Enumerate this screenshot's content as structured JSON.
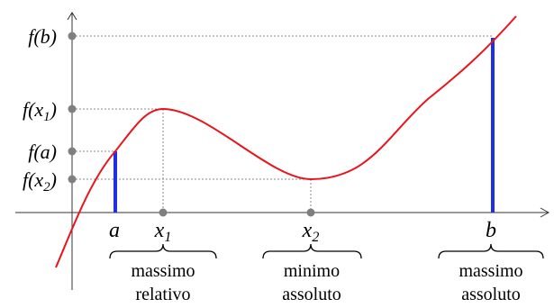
{
  "y_labels": {
    "fb": {
      "base": "f(b)"
    },
    "fx1": {
      "pre": "f(x",
      "sub": "1",
      "post": ")"
    },
    "fa": {
      "base": "f(a)"
    },
    "fx2": {
      "pre": "f(x",
      "sub": "2",
      "post": ")"
    }
  },
  "x_labels": {
    "a": "a",
    "x1": {
      "pre": "x",
      "sub": "1"
    },
    "x2": {
      "pre": "x",
      "sub": "2"
    },
    "b": "b"
  },
  "annotations": {
    "left": {
      "line1": "massimo",
      "line2": "relativo"
    },
    "middle": {
      "line1": "minimo",
      "line2": "assoluto"
    },
    "right": {
      "line1": "massimo",
      "line2": "assoluto"
    }
  },
  "colors": {
    "curve": "#e8151b",
    "bars": "#1f2fe6",
    "axes": "#333333",
    "guides": "#888888",
    "dots": "#7f7f7f"
  }
}
